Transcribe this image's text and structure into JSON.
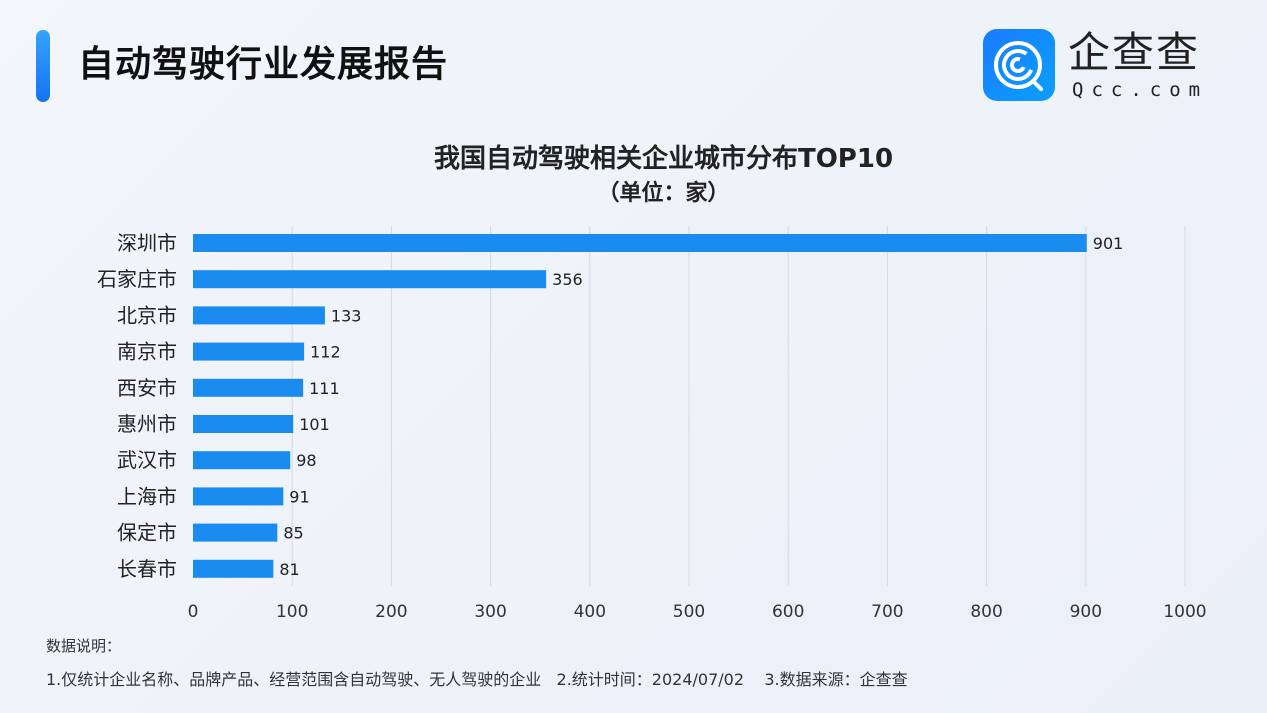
{
  "header": {
    "title": "自动驾驶行业发展报告"
  },
  "logo": {
    "cn": "企查查",
    "en": "Qcc.com"
  },
  "chart_data": {
    "type": "bar",
    "orientation": "horizontal",
    "title": "我国自动驾驶相关企业城市分布TOP10",
    "subtitle": "（单位：家）",
    "categories": [
      "深圳市",
      "石家庄市",
      "北京市",
      "南京市",
      "西安市",
      "惠州市",
      "武汉市",
      "上海市",
      "保定市",
      "长春市"
    ],
    "values": [
      901,
      356,
      133,
      112,
      111,
      101,
      98,
      91,
      85,
      81
    ],
    "xlim": [
      0,
      1000
    ],
    "xticks": [
      0,
      100,
      200,
      300,
      400,
      500,
      600,
      700,
      800,
      900,
      1000
    ],
    "grid": true,
    "bar_color": "#1a8cf0",
    "data_labels": true
  },
  "notes": {
    "title": "数据说明：",
    "text": "1.仅统计企业名称、品牌产品、经营范围含自动驾驶、无人驾驶的企业   2.统计时间：2024/07/02    3.数据来源：企查查"
  }
}
